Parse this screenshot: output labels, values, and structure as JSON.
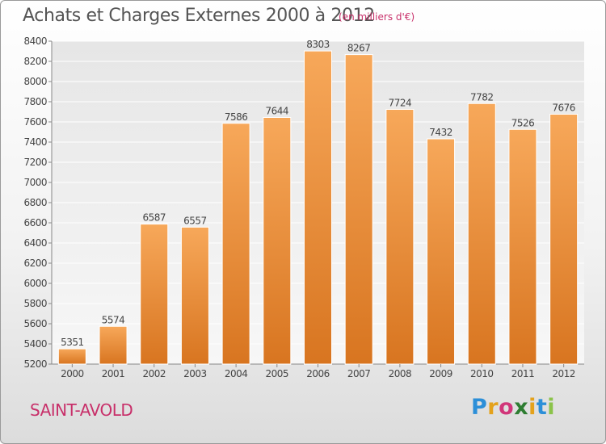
{
  "header": {
    "title": "Achats et Charges Externes 2000 à 2012",
    "subtitle": "(en milliers d'€)"
  },
  "footer": {
    "place": "SAINT-AVOLD",
    "logo": "Proxiti"
  },
  "colors": {
    "bar_light": "#f7a85a",
    "bar_dark": "#d87520",
    "accent": "#c8306a",
    "text": "#555555"
  },
  "chart_data": {
    "type": "bar",
    "title": "Achats et Charges Externes 2000 à 2012",
    "subtitle": "(en milliers d'€)",
    "categories": [
      "2000",
      "2001",
      "2002",
      "2003",
      "2004",
      "2005",
      "2006",
      "2007",
      "2008",
      "2009",
      "2010",
      "2011",
      "2012"
    ],
    "values": [
      5351,
      5574,
      6587,
      6557,
      7586,
      7644,
      8303,
      8267,
      7724,
      7432,
      7782,
      7526,
      7676
    ],
    "ylim": [
      5200,
      8400
    ],
    "yticks": [
      5200,
      5400,
      5600,
      5800,
      6000,
      6200,
      6400,
      6600,
      6800,
      7000,
      7200,
      7400,
      7600,
      7800,
      8000,
      8200,
      8400
    ],
    "grid": true,
    "legend": "none"
  }
}
